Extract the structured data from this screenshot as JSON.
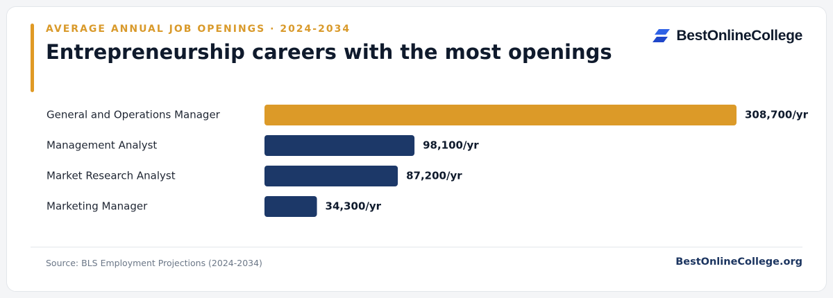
{
  "header": {
    "eyebrow": "AVERAGE ANNUAL JOB OPENINGS · 2024-2034",
    "title": "Entrepreneurship careers with the most openings"
  },
  "brand": {
    "name": "BestOnlineCollege",
    "icon": "logo-icon"
  },
  "footer": {
    "source": "Source: BLS Employment Projections (2024-2034)",
    "site": "BestOnlineCollege.org"
  },
  "colors": {
    "highlight": "#dc9a28",
    "bar": "#1c3868",
    "accent": "#e09a25",
    "text": "#0f1a2c",
    "label": "#1f2633"
  },
  "chart_data": {
    "type": "bar",
    "orientation": "horizontal",
    "categories": [
      "General and Operations Manager",
      "Management Analyst",
      "Market Research Analyst",
      "Marketing Manager"
    ],
    "values": [
      308700,
      98100,
      87200,
      34300
    ],
    "value_labels": [
      "308,700/yr",
      "98,100/yr",
      "87,200/yr",
      "34,300/yr"
    ],
    "highlight_index": 0,
    "xlim": [
      0,
      308700
    ],
    "grid": false,
    "legend": "none",
    "title": "Entrepreneurship careers with the most openings"
  }
}
